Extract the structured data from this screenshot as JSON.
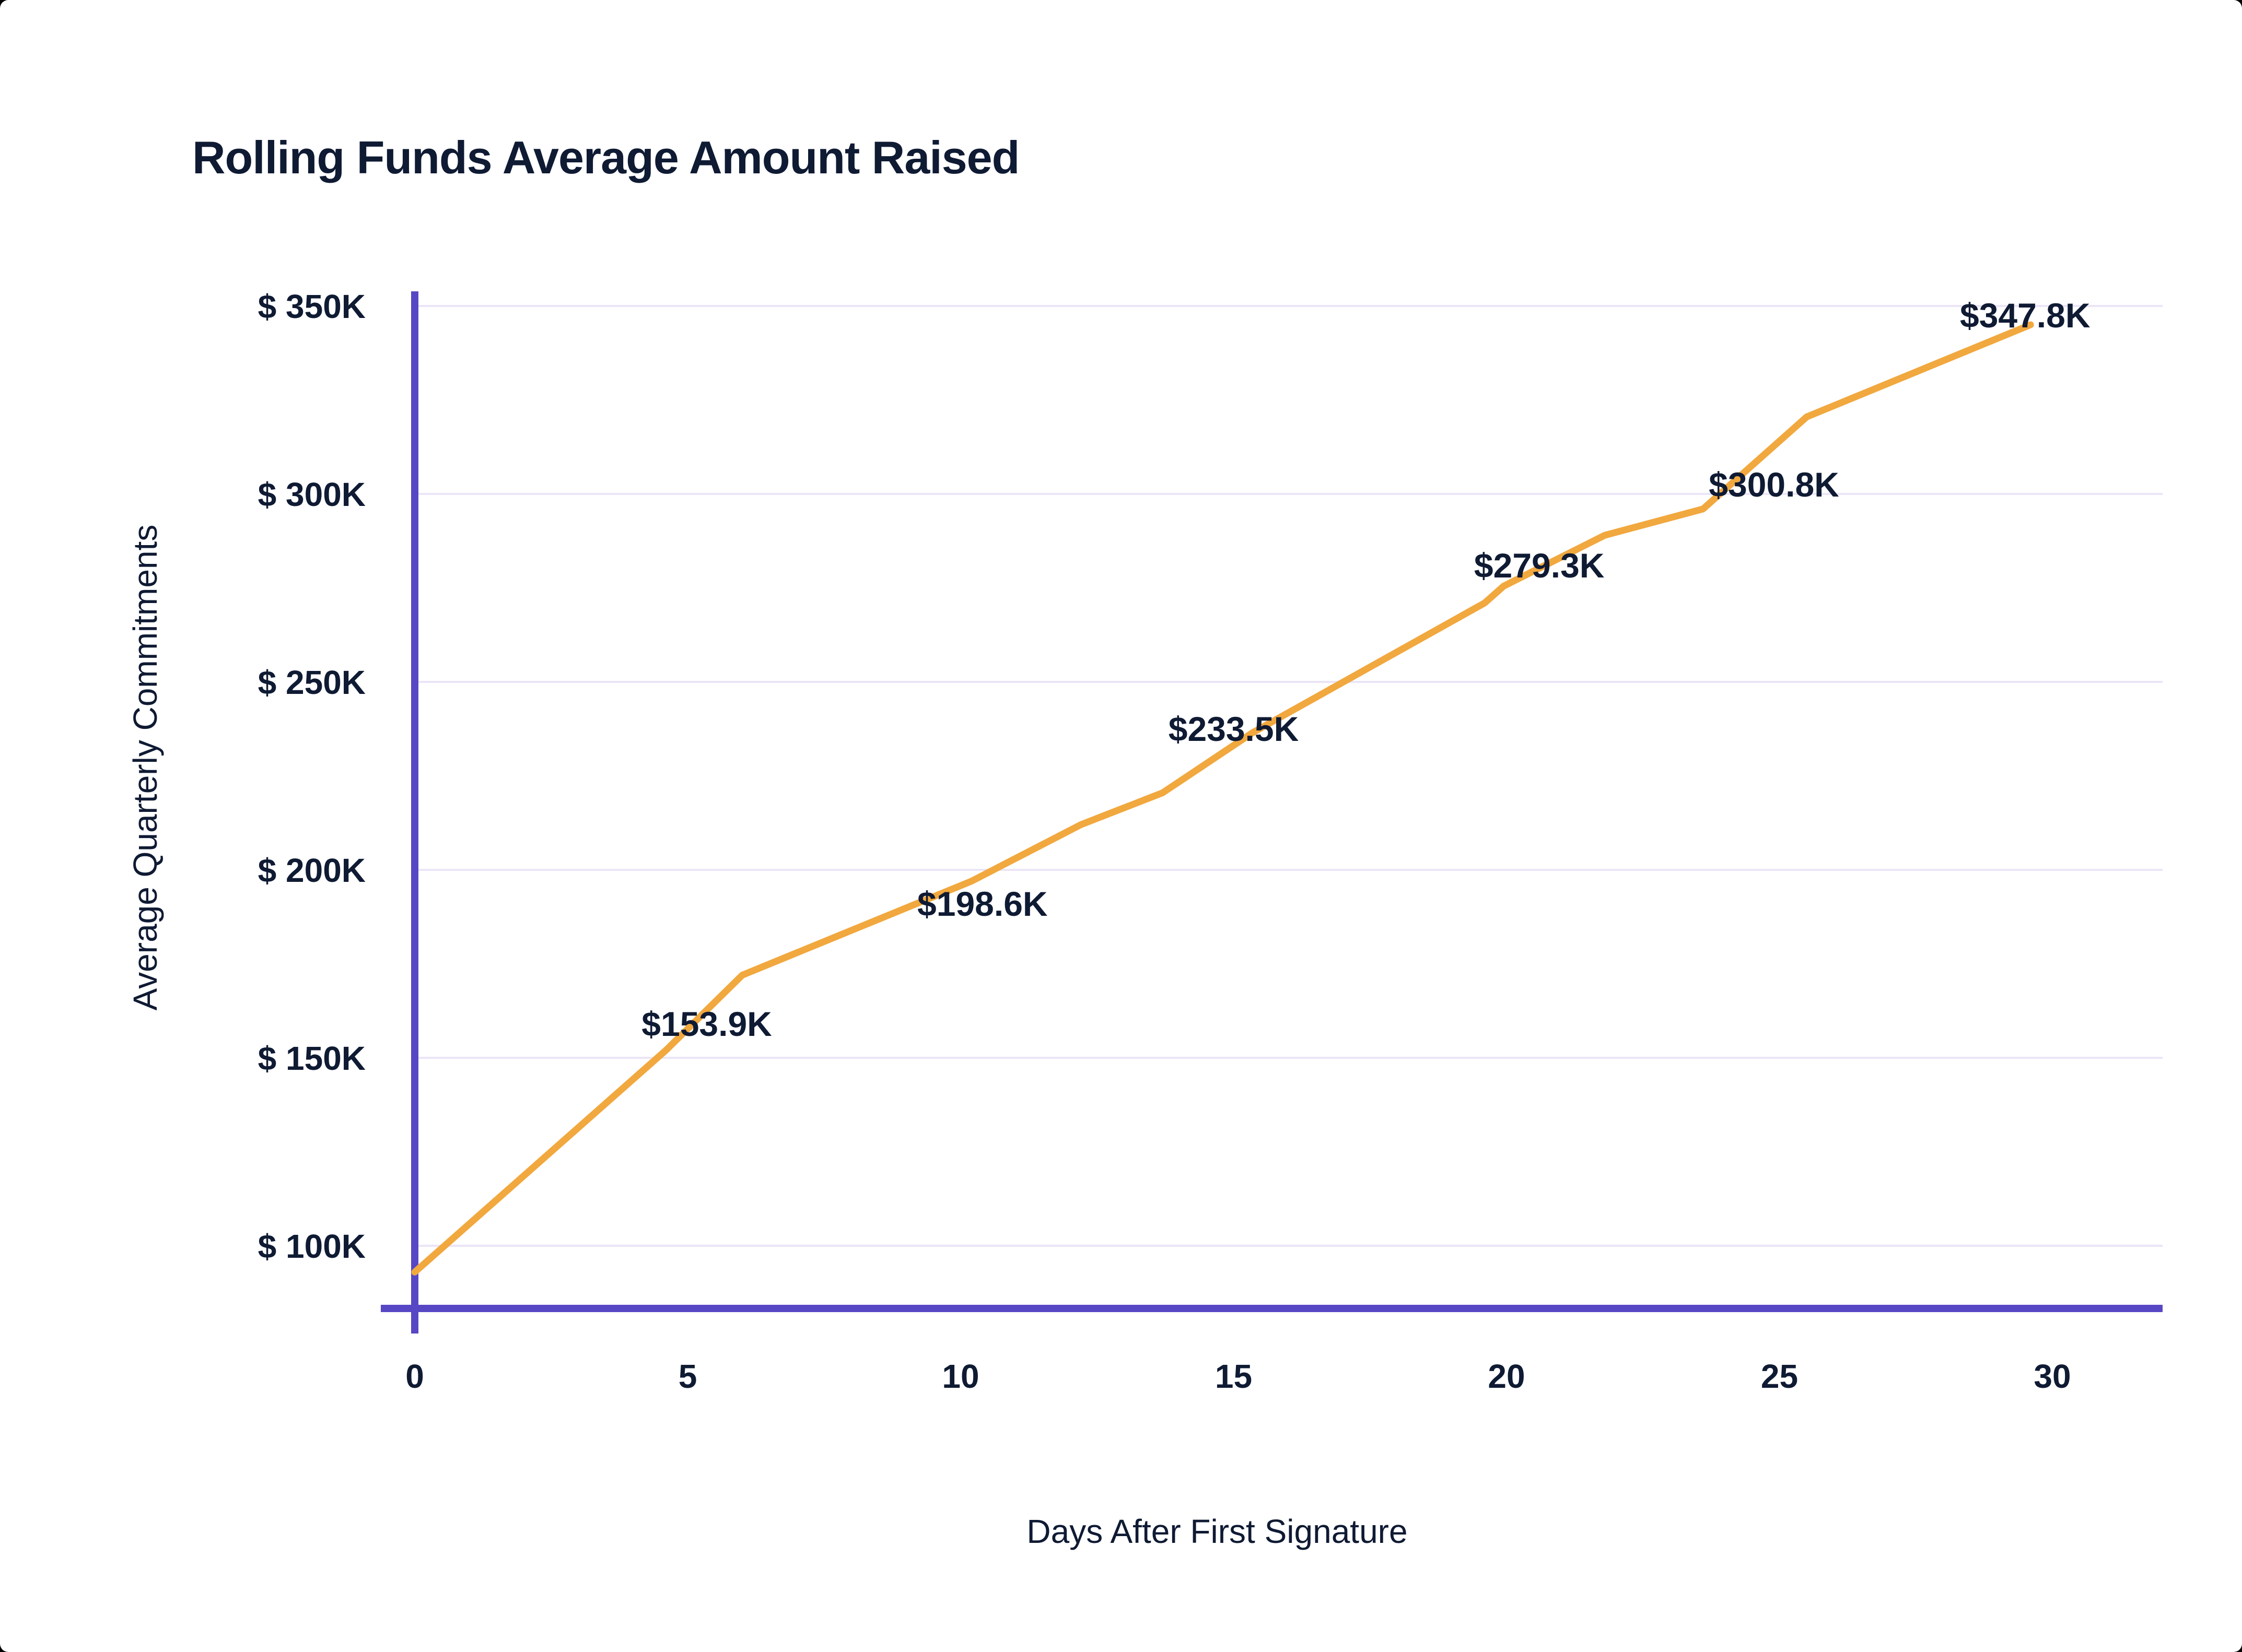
{
  "header": {
    "title": "Rolling Funds Average Amount Raised"
  },
  "chart_data": {
    "type": "line",
    "title": "Rolling Funds Average Amount Raised",
    "xlabel": "Days After First Signature",
    "ylabel": "Average Quarterly Commitments",
    "x_ticks": [
      0,
      5,
      10,
      15,
      20,
      25,
      30
    ],
    "x_tick_labels": [
      "0",
      "5",
      "10",
      "15",
      "20",
      "25",
      "30"
    ],
    "y_ticks": [
      350,
      300,
      250,
      200,
      150,
      100
    ],
    "y_tick_labels": [
      "$ 350K",
      "$ 300K",
      "$ 250K",
      "$ 200K",
      "$ 150K",
      "$ 100K"
    ],
    "xlim": [
      0,
      32
    ],
    "ylim": [
      83,
      353
    ],
    "grid": "horizontal",
    "legend": false,
    "series": [
      {
        "name": "Average Quarterly Commitments",
        "color": "#F1A83E",
        "points": [
          [
            0,
            93
          ],
          [
            4.6,
            152
          ],
          [
            6.0,
            172
          ],
          [
            10.2,
            197
          ],
          [
            12.2,
            212
          ],
          [
            13.7,
            220.5
          ],
          [
            15.35,
            236.5
          ],
          [
            19.6,
            271
          ],
          [
            19.95,
            275.5
          ],
          [
            21.8,
            289
          ],
          [
            23.6,
            296
          ],
          [
            25.5,
            320.5
          ],
          [
            29.6,
            345
          ]
        ]
      }
    ],
    "point_labels": [
      {
        "label": "$153.9K",
        "value": 153.9,
        "near_day": 5,
        "pos": [
          5.35,
          159
        ]
      },
      {
        "label": "$198.6K",
        "value": 198.6,
        "near_day": 10,
        "pos": [
          10.4,
          191
        ]
      },
      {
        "label": "$233.5K",
        "value": 233.5,
        "near_day": 15,
        "pos": [
          15.0,
          237.5
        ]
      },
      {
        "label": "$279.3K",
        "value": 279.3,
        "near_day": 20,
        "pos": [
          20.6,
          281
        ]
      },
      {
        "label": "$300.8K",
        "value": 300.8,
        "near_day": 25,
        "pos": [
          24.9,
          302.5
        ]
      },
      {
        "label": "$347.8K",
        "value": 347.8,
        "near_day": 30,
        "pos": [
          29.5,
          347.5
        ]
      }
    ]
  },
  "colors": {
    "background": "#000000",
    "card": "#FFFFFF",
    "text": "#0F1A33",
    "axis": "#5747C4",
    "gridline": "#EBE5F7",
    "line": "#F1A83E"
  }
}
